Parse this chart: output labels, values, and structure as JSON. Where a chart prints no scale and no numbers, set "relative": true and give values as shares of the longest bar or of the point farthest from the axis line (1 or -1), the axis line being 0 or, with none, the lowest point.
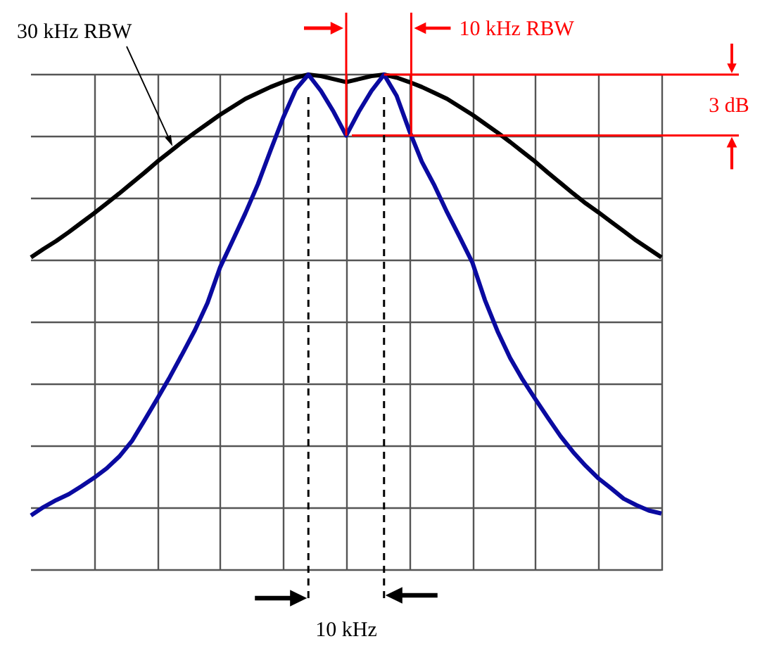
{
  "chart_data": {
    "type": "line",
    "relative": true,
    "categories": [
      null,
      null,
      null,
      null,
      null,
      null,
      null,
      null,
      null,
      null,
      null,
      null,
      null,
      null,
      null,
      null,
      null,
      null,
      null,
      null,
      null,
      null,
      null,
      null,
      null,
      null,
      null,
      null,
      null,
      null,
      null,
      null,
      null,
      null,
      null,
      null,
      null,
      null,
      null,
      null,
      null,
      null,
      null,
      null,
      null,
      null,
      null,
      null,
      null,
      null,
      null
    ],
    "series": [
      {
        "color": "#000000",
        "values": [
          0.631,
          0.648,
          0.664,
          0.682,
          0.701,
          0.72,
          0.74,
          0.76,
          0.781,
          0.802,
          0.824,
          0.844,
          0.864,
          0.883,
          0.901,
          0.919,
          0.935,
          0.951,
          0.963,
          0.975,
          0.985,
          0.994,
          1,
          0.997,
          0.991,
          0.985,
          0.991,
          0.997,
          1,
          0.994,
          0.985,
          0.975,
          0.963,
          0.951,
          0.935,
          0.919,
          0.901,
          0.883,
          0.864,
          0.844,
          0.824,
          0.802,
          0.781,
          0.76,
          0.74,
          0.722,
          0.703,
          0.684,
          0.665,
          0.648,
          0.631
        ]
      },
      {
        "color": "#0a0aa0",
        "values": [
          0.11,
          0.127,
          0.141,
          0.153,
          0.169,
          0.186,
          0.205,
          0.229,
          0.26,
          0.302,
          0.345,
          0.389,
          0.436,
          0.484,
          0.539,
          0.611,
          0.665,
          0.72,
          0.779,
          0.847,
          0.913,
          0.97,
          1,
          0.967,
          0.925,
          0.877,
          0.925,
          0.967,
          1,
          0.957,
          0.887,
          0.824,
          0.776,
          0.722,
          0.672,
          0.621,
          0.545,
          0.482,
          0.428,
          0.384,
          0.345,
          0.307,
          0.27,
          0.238,
          0.21,
          0.185,
          0.165,
          0.144,
          0.131,
          0.12,
          0.114
        ]
      }
    ],
    "grid": true,
    "annotations": [
      "30 kHz RBW",
      "10 kHz RBW",
      "3 dB",
      "10 kHz"
    ]
  }
}
